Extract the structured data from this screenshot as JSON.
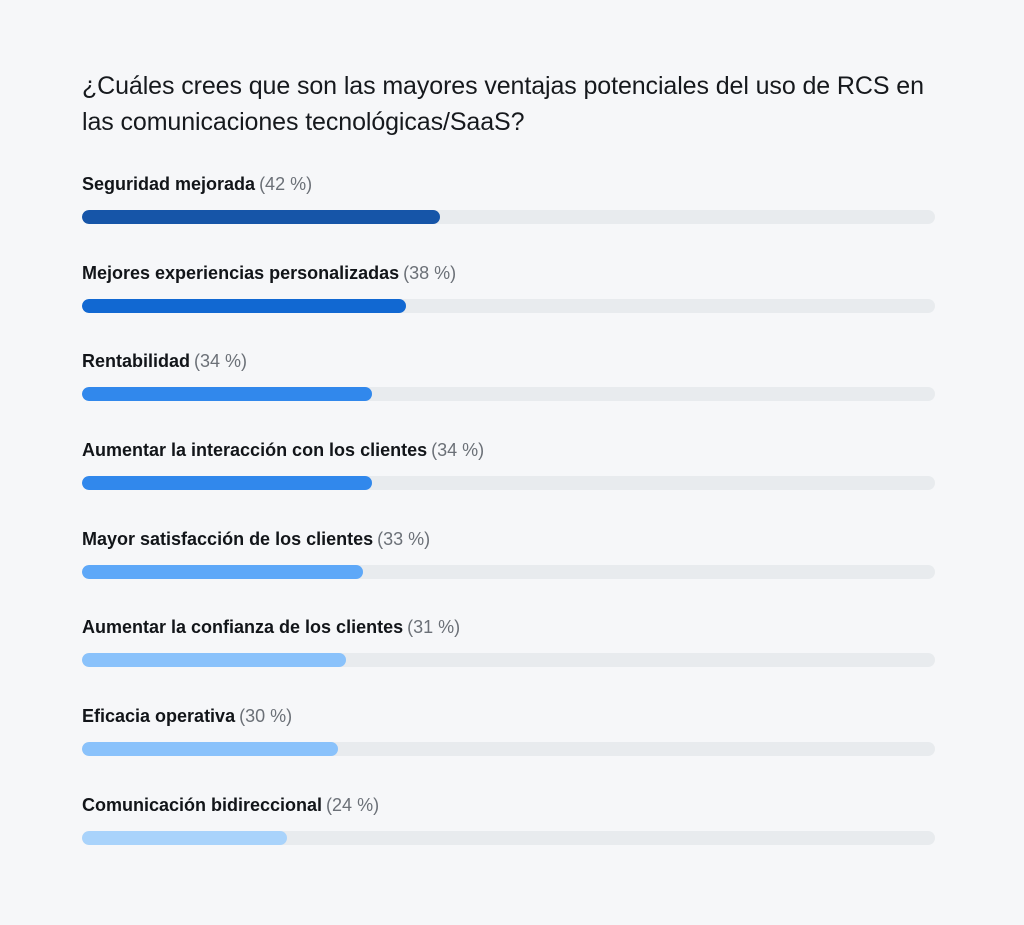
{
  "chart_data": {
    "type": "bar",
    "orientation": "horizontal",
    "title": "¿Cuáles crees que son las mayores ventajas potenciales del uso de RCS en las comunicaciones tecnológicas/SaaS?",
    "xlabel": "",
    "ylabel": "",
    "xlim": [
      0,
      100
    ],
    "grid": false,
    "legend": null,
    "categories": [
      "Seguridad mejorada",
      "Mejores experiencias personalizadas",
      "Rentabilidad",
      "Aumentar la interacción con los clientes",
      "Mayor satisfacción de los clientes",
      "Aumentar la confianza de los clientes",
      "Eficacia operativa",
      "Comunicación bidireccional"
    ],
    "values": [
      42,
      38,
      34,
      34,
      33,
      31,
      30,
      24
    ],
    "unit": "%"
  },
  "title": "¿Cuáles crees que son las mayores ventajas potenciales del uso de RCS en las comunicaciones tecnológicas/SaaS?",
  "bars": [
    {
      "label": "Seguridad mejorada",
      "pct_text": "(42 %)",
      "value": 42,
      "color": "#1655a8"
    },
    {
      "label": "Mejores experiencias personalizadas",
      "pct_text": "(38 %)",
      "value": 38,
      "color": "#1168d2"
    },
    {
      "label": "Rentabilidad",
      "pct_text": "(34 %)",
      "value": 34,
      "color": "#3188ec"
    },
    {
      "label": "Aumentar la interacción con los clientes",
      "pct_text": "(34 %)",
      "value": 34,
      "color": "#3188ec"
    },
    {
      "label": "Mayor satisfacción de los clientes",
      "pct_text": "(33 %)",
      "value": 33,
      "color": "#5ea8f8"
    },
    {
      "label": "Aumentar la confianza de los clientes",
      "pct_text": "(31 %)",
      "value": 31,
      "color": "#8ac2fb"
    },
    {
      "label": "Eficacia operativa",
      "pct_text": "(30 %)",
      "value": 30,
      "color": "#8ac2fb"
    },
    {
      "label": "Comunicación bidireccional",
      "pct_text": "(24 %)",
      "value": 24,
      "color": "#a9d3fb"
    }
  ],
  "colors": {
    "background": "#f6f7f9",
    "track": "#e8ebee",
    "label_text": "#121519",
    "pct_text": "#6b7077"
  }
}
